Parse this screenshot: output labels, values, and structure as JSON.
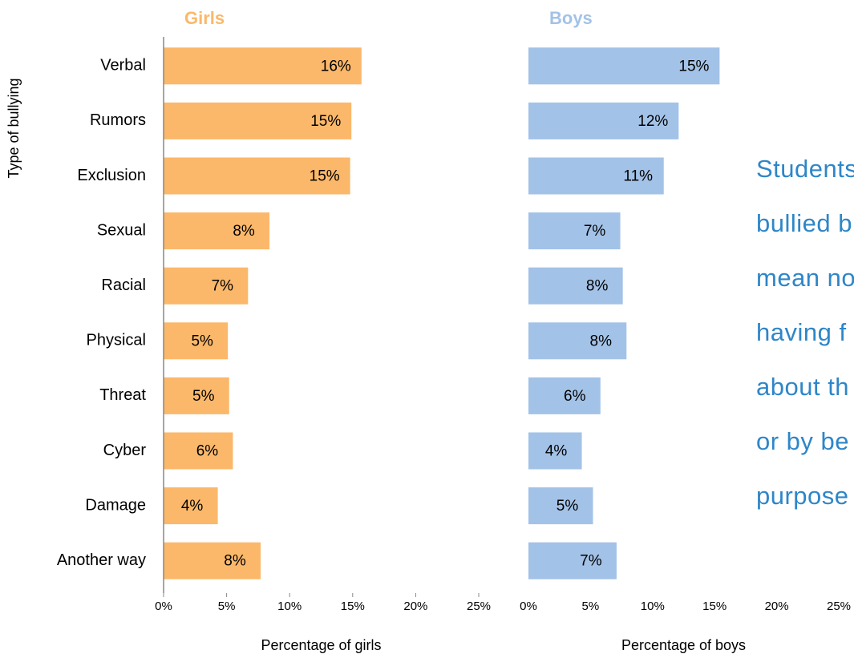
{
  "chart_data": [
    {
      "type": "bar",
      "orientation": "horizontal",
      "title": "Girls",
      "x_label": "Percentage of girls",
      "y_label": "Type of bullying",
      "color": "#fbb86a",
      "categories": [
        "Verbal",
        "Rumors",
        "Exclusion",
        "Sexual",
        "Racial",
        "Physical",
        "Threat",
        "Cyber",
        "Damage",
        "Another way"
      ],
      "values": [
        15.7,
        14.9,
        14.8,
        8.4,
        6.7,
        5.1,
        5.2,
        5.5,
        4.3,
        7.7
      ],
      "value_labels": [
        "16%",
        "15%",
        "15%",
        "8%",
        "7%",
        "5%",
        "5%",
        "6%",
        "4%",
        "8%"
      ],
      "xlim": [
        0,
        25
      ],
      "xticks": [
        {
          "value": 0,
          "label": "0%"
        },
        {
          "value": 5,
          "label": "5%"
        },
        {
          "value": 10,
          "label": "10%"
        },
        {
          "value": 15,
          "label": "15%"
        },
        {
          "value": 20,
          "label": "20%"
        },
        {
          "value": 25,
          "label": "25%"
        }
      ]
    },
    {
      "type": "bar",
      "orientation": "horizontal",
      "title": "Boys",
      "x_label": "Percentage of boys",
      "color": "#a3c2e7",
      "values": [
        15.4,
        12.1,
        10.9,
        7.4,
        7.6,
        7.9,
        5.8,
        4.3,
        5.2,
        7.1
      ],
      "value_labels": [
        "15%",
        "12%",
        "11%",
        "7%",
        "8%",
        "8%",
        "6%",
        "4%",
        "5%",
        "7%"
      ],
      "xlim": [
        0,
        25
      ],
      "xticks": [
        {
          "value": 0,
          "label": "0%"
        },
        {
          "value": 5,
          "label": "5%"
        },
        {
          "value": 10,
          "label": "10%"
        },
        {
          "value": 15,
          "label": "15%"
        },
        {
          "value": 20,
          "label": "20%"
        },
        {
          "value": 25,
          "label": "25%"
        }
      ]
    }
  ],
  "annotation": {
    "lines": [
      "Students",
      "bullied b",
      "mean no",
      "having f",
      "about th",
      "or by be",
      "purpose"
    ]
  }
}
